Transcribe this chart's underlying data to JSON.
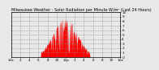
{
  "title": "Milwaukee Weather - Solar Radiation per Minute W/m² (Last 24 Hours)",
  "background_color": "#e8e8e8",
  "plot_bg_color": "#e8e8e8",
  "bar_color": "#ff0000",
  "grid_color": "#888888",
  "text_color": "#000000",
  "ylim": [
    0,
    1000
  ],
  "xlim": [
    0,
    288
  ],
  "num_points": 288,
  "title_fontsize": 3.5,
  "tick_fontsize": 3.0,
  "num_vgrid": 12,
  "xtick_labels": [
    "12a",
    "2",
    "4",
    "6",
    "8",
    "10",
    "12p",
    "2",
    "4",
    "6",
    "8",
    "10",
    "12a"
  ],
  "ytick_labels": [
    "0",
    "1",
    "2",
    "3",
    "4",
    "5",
    "6",
    "7",
    "8",
    "9",
    "10"
  ]
}
